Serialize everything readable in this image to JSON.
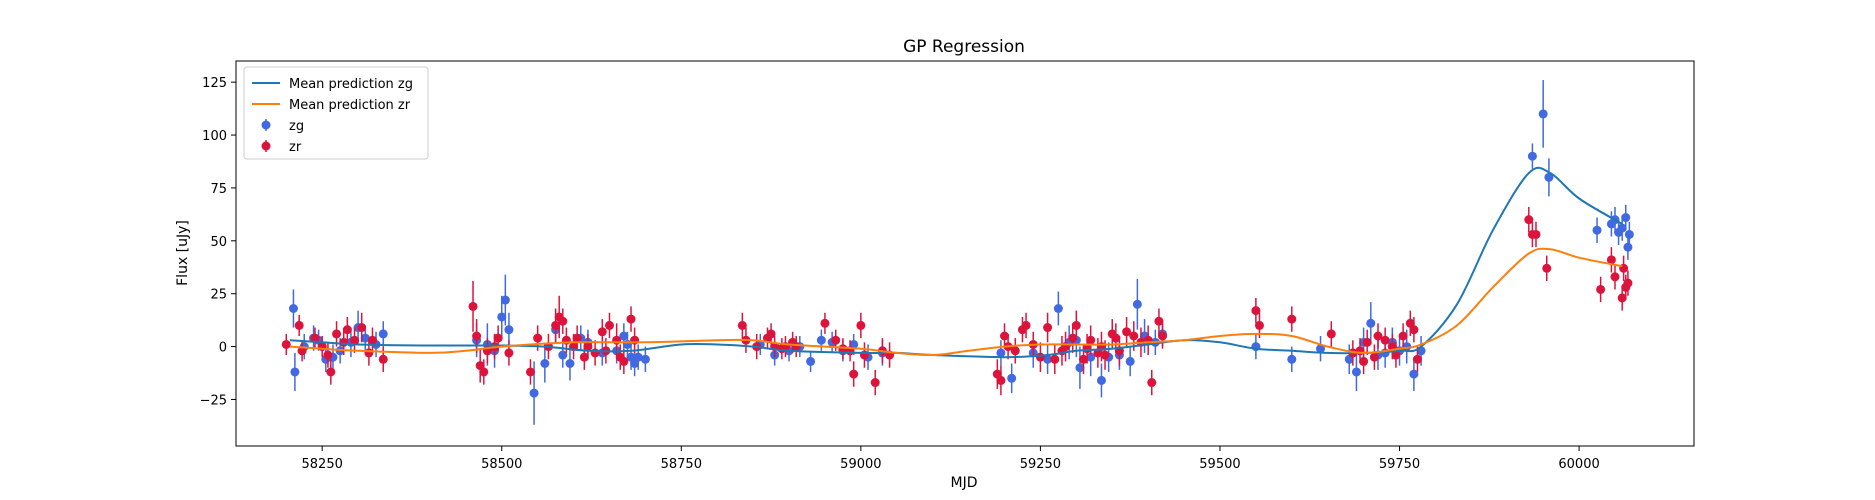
{
  "chart_data": {
    "type": "scatter",
    "title": "GP Regression",
    "xlabel": "MJD",
    "ylabel": "Flux [uJy]",
    "xlim": [
      58130,
      60160
    ],
    "ylim": [
      -47,
      135
    ],
    "x_ticks": [
      58250,
      58500,
      58750,
      59000,
      59250,
      59500,
      59750,
      60000
    ],
    "y_ticks": [
      -25,
      0,
      25,
      50,
      75,
      100,
      125
    ],
    "legend_position": "top-left",
    "colors": {
      "zg_line": "#1f77b4",
      "zr_line": "#ff7f0e",
      "zg_points": "#4169e1",
      "zr_points": "#dc143c"
    },
    "series": [
      {
        "name": "Mean prediction zg",
        "kind": "line",
        "x": [
          58205,
          58250,
          58300,
          58400,
          58500,
          58560,
          58620,
          58680,
          58750,
          58800,
          58850,
          58900,
          59000,
          59050,
          59100,
          59200,
          59260,
          59300,
          59350,
          59400,
          59450,
          59500,
          59550,
          59600,
          59650,
          59700,
          59750,
          59780,
          59830,
          59880,
          59930,
          59960,
          60000,
          60060
        ],
        "values": [
          3,
          2,
          1,
          0.5,
          0.5,
          0,
          -2,
          -2,
          1,
          1,
          0,
          -2,
          -3,
          -3,
          -4,
          -5,
          -4,
          -2,
          -1,
          1,
          3,
          2,
          -1,
          -2,
          -3,
          -3,
          -2,
          0,
          20,
          55,
          82,
          82,
          70,
          58
        ]
      },
      {
        "name": "Mean prediction zr",
        "kind": "line",
        "x": [
          58205,
          58250,
          58300,
          58400,
          58450,
          58500,
          58600,
          58700,
          58800,
          58850,
          58900,
          59000,
          59050,
          59100,
          59150,
          59200,
          59250,
          59300,
          59350,
          59400,
          59450,
          59500,
          59550,
          59600,
          59650,
          59700,
          59750,
          59780,
          59830,
          59880,
          59930,
          59960,
          60000,
          60060
        ],
        "values": [
          0,
          -1,
          -2,
          -3,
          -2,
          0,
          2,
          2,
          3,
          3,
          1,
          -1,
          -3,
          -4,
          -2,
          0,
          1,
          1,
          1,
          2,
          3,
          5,
          6,
          5,
          0,
          -3,
          -1,
          1,
          10,
          28,
          44,
          46,
          42,
          38
        ]
      },
      {
        "name": "zg",
        "kind": "errorbar",
        "x": [
          58210,
          58212,
          58225,
          58238,
          58245,
          58255,
          58265,
          58275,
          58290,
          58300,
          58310,
          58325,
          58335,
          58465,
          58480,
          58490,
          58500,
          58505,
          58510,
          58545,
          58560,
          58575,
          58585,
          58595,
          58610,
          58620,
          58640,
          58660,
          58670,
          58675,
          58680,
          58685,
          58690,
          58700,
          58860,
          58880,
          58900,
          58915,
          58930,
          58945,
          58960,
          58975,
          58990,
          59010,
          59030,
          59195,
          59210,
          59240,
          59260,
          59275,
          59290,
          59300,
          59305,
          59320,
          59335,
          59345,
          59360,
          59375,
          59385,
          59395,
          59410,
          59420,
          59550,
          59600,
          59640,
          59680,
          59690,
          59700,
          59710,
          59720,
          59730,
          59740,
          59750,
          59760,
          59770,
          59780,
          59935,
          59950,
          59958,
          60025,
          60045,
          60050,
          60055,
          60060,
          60065,
          60068,
          60070
        ],
        "values": [
          18,
          -12,
          0,
          4,
          3,
          -6,
          -5,
          -2,
          2,
          9,
          4,
          1,
          6,
          3,
          1,
          -2,
          14,
          22,
          8,
          -22,
          -8,
          8,
          -4,
          -8,
          4,
          2,
          -3,
          -2,
          5,
          1,
          -5,
          -8,
          -5,
          -6,
          1,
          -4,
          -2,
          0,
          -7,
          3,
          2,
          -2,
          1,
          -5,
          -3,
          -3,
          -15,
          -3,
          -6,
          18,
          2,
          3,
          -10,
          -5,
          -16,
          -5,
          -4,
          -7,
          20,
          5,
          2,
          6,
          0,
          -6,
          -1,
          -6,
          -12,
          2,
          11,
          -4,
          -3,
          2,
          -2,
          0,
          -13,
          -2,
          90,
          110,
          80,
          55,
          58,
          60,
          54,
          56,
          61,
          47,
          53
        ],
        "errors": [
          9,
          9,
          6,
          6,
          5,
          6,
          6,
          6,
          7,
          8,
          6,
          6,
          6,
          8,
          10,
          8,
          10,
          12,
          8,
          15,
          9,
          6,
          6,
          8,
          6,
          6,
          6,
          6,
          6,
          6,
          6,
          6,
          6,
          6,
          5,
          5,
          5,
          5,
          5,
          5,
          5,
          5,
          5,
          6,
          6,
          6,
          7,
          7,
          7,
          8,
          8,
          8,
          10,
          9,
          8,
          7,
          7,
          7,
          12,
          8,
          6,
          6,
          6,
          6,
          6,
          7,
          9,
          7,
          10,
          7,
          7,
          7,
          7,
          8,
          8,
          7,
          6,
          16,
          9,
          6,
          6,
          6,
          6,
          6,
          6,
          6,
          6
        ]
      },
      {
        "name": "zr",
        "kind": "errorbar",
        "x": [
          58200,
          58218,
          58222,
          58240,
          58250,
          58258,
          58262,
          58270,
          58280,
          58285,
          58295,
          58305,
          58315,
          58320,
          58335,
          58460,
          58465,
          58470,
          58475,
          58480,
          58490,
          58495,
          58510,
          58540,
          58550,
          58565,
          58575,
          58580,
          58585,
          58590,
          58600,
          58605,
          58615,
          58620,
          58630,
          58640,
          58645,
          58650,
          58660,
          58665,
          58670,
          58680,
          58685,
          58835,
          58840,
          58855,
          58870,
          58875,
          58880,
          58890,
          58895,
          58905,
          58910,
          58950,
          58965,
          58975,
          58985,
          58990,
          59000,
          59005,
          59020,
          59030,
          59040,
          59190,
          59195,
          59200,
          59205,
          59215,
          59225,
          59230,
          59240,
          59250,
          59260,
          59270,
          59280,
          59285,
          59295,
          59300,
          59310,
          59315,
          59320,
          59330,
          59335,
          59340,
          59350,
          59355,
          59360,
          59370,
          59380,
          59390,
          59400,
          59405,
          59415,
          59420,
          59550,
          59555,
          59600,
          59655,
          59685,
          59695,
          59700,
          59705,
          59715,
          59720,
          59730,
          59740,
          59745,
          59755,
          59765,
          59770,
          59775,
          59930,
          59935,
          59940,
          59955,
          60030,
          60045,
          60050,
          60060,
          60062,
          60065,
          60068
        ],
        "values": [
          1,
          10,
          -2,
          4,
          0,
          -4,
          -12,
          6,
          2,
          8,
          3,
          9,
          -3,
          3,
          -6,
          19,
          5,
          -9,
          -12,
          -2,
          0,
          4,
          -3,
          -12,
          4,
          0,
          10,
          14,
          12,
          3,
          0,
          4,
          -5,
          0,
          -3,
          7,
          -2,
          10,
          3,
          -5,
          -7,
          13,
          3,
          10,
          3,
          0,
          4,
          6,
          0,
          -1,
          0,
          2,
          0,
          11,
          3,
          -1,
          -2,
          -13,
          10,
          -4,
          -17,
          -2,
          -4,
          -13,
          -16,
          5,
          0,
          -2,
          8,
          10,
          1,
          -5,
          9,
          -6,
          -2,
          0,
          4,
          10,
          -6,
          -1,
          3,
          -3,
          0,
          -4,
          6,
          4,
          -2,
          7,
          5,
          2,
          3,
          -17,
          12,
          5,
          17,
          10,
          13,
          6,
          -3,
          -2,
          -7,
          2,
          -5,
          5,
          3,
          0,
          -4,
          5,
          11,
          8,
          -6,
          60,
          53,
          53,
          37,
          27,
          41,
          33,
          23,
          37,
          28,
          30
        ],
        "errors": [
          5,
          5,
          5,
          5,
          5,
          6,
          6,
          6,
          6,
          6,
          6,
          7,
          6,
          6,
          6,
          12,
          8,
          8,
          6,
          6,
          6,
          6,
          6,
          6,
          6,
          6,
          8,
          10,
          6,
          6,
          6,
          6,
          6,
          6,
          6,
          6,
          6,
          6,
          8,
          6,
          6,
          6,
          6,
          6,
          6,
          6,
          5,
          5,
          5,
          5,
          5,
          5,
          5,
          5,
          5,
          5,
          5,
          6,
          6,
          6,
          6,
          6,
          6,
          7,
          7,
          6,
          6,
          6,
          6,
          6,
          6,
          7,
          7,
          7,
          7,
          7,
          7,
          7,
          7,
          7,
          7,
          7,
          7,
          7,
          7,
          7,
          7,
          7,
          7,
          7,
          7,
          6,
          6,
          6,
          6,
          6,
          6,
          6,
          6,
          6,
          6,
          6,
          6,
          6,
          6,
          6,
          6,
          6,
          6,
          6,
          6,
          6,
          6,
          6,
          6,
          6,
          6,
          6,
          6,
          6,
          6,
          6
        ]
      }
    ]
  }
}
